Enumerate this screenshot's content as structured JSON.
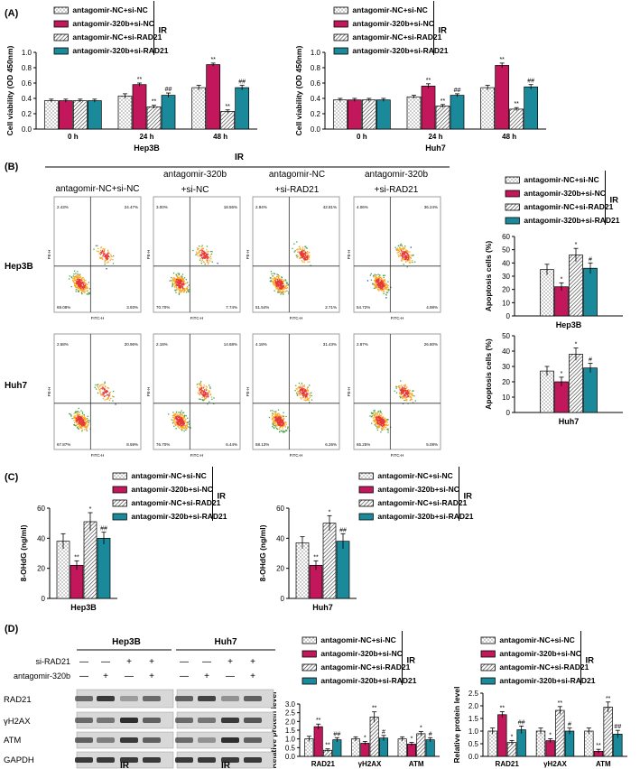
{
  "colors": {
    "nc": "#ffffff",
    "m320": "#c2185b",
    "rad21": "#ffffff",
    "combo": "#1a8a9a",
    "frame": "#000000"
  },
  "panel_labels": [
    "(A)",
    "(B)",
    "(C)",
    "(D)"
  ],
  "legend": {
    "items": [
      "antagomir-NC+si-NC",
      "antagomir-320b+si-NC",
      "antagomir-NC+si-RAD21",
      "antagomir-320b+si-RAD21"
    ],
    "tag": "IR"
  },
  "flow": {
    "ir_label": "IR",
    "col_headers": [
      {
        "l1": "antagomir-NC+si-NC",
        "l2": ""
      },
      {
        "l1": "antagomir-320b",
        "l2": "+si-NC"
      },
      {
        "l1": "antagomir-NC",
        "l2": "+si-RAD21"
      },
      {
        "l1": "antagomir-320b",
        "l2": "+si-RAD21"
      }
    ],
    "row_labels": [
      "Hep3B",
      "Huh7"
    ],
    "axis_x": "FITC-H",
    "axis_y": "PE-H",
    "quadrants": [
      [
        [
          "2.43%",
          "24.47%",
          "69.08%",
          "3.93%"
        ],
        [
          "3.00%",
          "18.56%",
          "70.70%",
          "7.74%"
        ],
        [
          "2.94%",
          "42.81%",
          "51.54%",
          "2.71%"
        ],
        [
          "4.06%",
          "36.24%",
          "54.72%",
          "4.98%"
        ]
      ],
      [
        [
          "2.58%",
          "20.96%",
          "67.87%",
          "8.59%"
        ],
        [
          "2.18%",
          "14.68%",
          "76.70%",
          "6.44%"
        ],
        [
          "4.18%",
          "31.43%",
          "58.13%",
          "6.26%"
        ],
        [
          "2.87%",
          "26.80%",
          "65.25%",
          "5.08%"
        ]
      ]
    ]
  },
  "chart_data": [
    {
      "id": "A1",
      "type": "bar",
      "title": "Hep3B",
      "xlabel": "Hep3B",
      "ylabel": "Cell viability (OD 450nm)",
      "ylim": [
        0,
        1.0
      ],
      "yticks": [
        "0.0",
        "0.2",
        "0.4",
        "0.6",
        "0.8",
        "1.0"
      ],
      "categories": [
        "0 h",
        "24 h",
        "48 h"
      ],
      "series": [
        {
          "name": "antagomir-NC+si-NC",
          "values": [
            0.37,
            0.43,
            0.54
          ],
          "err": [
            0.02,
            0.03,
            0.03
          ]
        },
        {
          "name": "antagomir-320b+si-NC",
          "values": [
            0.37,
            0.58,
            0.84
          ],
          "err": [
            0.02,
            0.02,
            0.02
          ]
        },
        {
          "name": "antagomir-NC+si-RAD21",
          "values": [
            0.37,
            0.29,
            0.23
          ],
          "err": [
            0.02,
            0.02,
            0.02
          ]
        },
        {
          "name": "antagomir-320b+si-RAD21",
          "values": [
            0.37,
            0.44,
            0.54
          ],
          "err": [
            0.02,
            0.03,
            0.03
          ]
        }
      ],
      "sig": [
        [
          "",
          "",
          "",
          ""
        ],
        [
          "",
          "**",
          "**",
          "##"
        ],
        [
          "",
          "**",
          "**",
          "##"
        ]
      ]
    },
    {
      "id": "A2",
      "type": "bar",
      "title": "Huh7",
      "xlabel": "Huh7",
      "ylabel": "Cell viability (OD 450nm)",
      "ylim": [
        0,
        1.0
      ],
      "yticks": [
        "0.0",
        "0.2",
        "0.4",
        "0.6",
        "0.8",
        "1.0"
      ],
      "categories": [
        "0 h",
        "24 h",
        "48 h"
      ],
      "series": [
        {
          "name": "antagomir-NC+si-NC",
          "values": [
            0.38,
            0.42,
            0.54
          ],
          "err": [
            0.02,
            0.02,
            0.03
          ]
        },
        {
          "name": "antagomir-320b+si-NC",
          "values": [
            0.38,
            0.56,
            0.83
          ],
          "err": [
            0.02,
            0.03,
            0.03
          ]
        },
        {
          "name": "antagomir-NC+si-RAD21",
          "values": [
            0.38,
            0.3,
            0.26
          ],
          "err": [
            0.02,
            0.02,
            0.02
          ]
        },
        {
          "name": "antagomir-320b+si-RAD21",
          "values": [
            0.38,
            0.44,
            0.55
          ],
          "err": [
            0.02,
            0.02,
            0.03
          ]
        }
      ],
      "sig": [
        [
          "",
          "",
          "",
          ""
        ],
        [
          "",
          "**",
          "**",
          "##"
        ],
        [
          "",
          "**",
          "**",
          "##"
        ]
      ]
    },
    {
      "id": "B1",
      "type": "bar",
      "title": "Hep3B",
      "xlabel": "Hep3B",
      "ylabel": "Apoptosis cells (%)",
      "ylim": [
        0,
        60
      ],
      "yticks": [
        "0",
        "10",
        "20",
        "30",
        "40",
        "50",
        "60"
      ],
      "categories": [
        ""
      ],
      "series": [
        {
          "name": "antagomir-NC+si-NC",
          "values": [
            35
          ],
          "err": [
            4
          ]
        },
        {
          "name": "antagomir-320b+si-NC",
          "values": [
            22
          ],
          "err": [
            3
          ]
        },
        {
          "name": "antagomir-NC+si-RAD21",
          "values": [
            46
          ],
          "err": [
            5
          ]
        },
        {
          "name": "antagomir-320b+si-RAD21",
          "values": [
            36
          ],
          "err": [
            4
          ]
        }
      ],
      "sig": [
        [
          "",
          "*",
          "*",
          "#"
        ]
      ]
    },
    {
      "id": "B2",
      "type": "bar",
      "title": "Huh7",
      "xlabel": "Huh7",
      "ylabel": "Apoptosis cells (%)",
      "ylim": [
        0,
        50
      ],
      "yticks": [
        "0",
        "10",
        "20",
        "30",
        "40",
        "50"
      ],
      "categories": [
        ""
      ],
      "series": [
        {
          "name": "antagomir-NC+si-NC",
          "values": [
            27
          ],
          "err": [
            3
          ]
        },
        {
          "name": "antagomir-320b+si-NC",
          "values": [
            20
          ],
          "err": [
            3
          ]
        },
        {
          "name": "antagomir-NC+si-RAD21",
          "values": [
            38
          ],
          "err": [
            4
          ]
        },
        {
          "name": "antagomir-320b+si-RAD21",
          "values": [
            29
          ],
          "err": [
            3
          ]
        }
      ],
      "sig": [
        [
          "",
          "*",
          "*",
          "#"
        ]
      ]
    },
    {
      "id": "C1",
      "type": "bar",
      "title": "Hep3B",
      "xlabel": "Hep3B",
      "ylabel": "8-OHdG (ng/ml)",
      "ylim": [
        0,
        60
      ],
      "yticks": [
        "0",
        "20",
        "40",
        "60"
      ],
      "categories": [
        ""
      ],
      "series": [
        {
          "name": "antagomir-NC+si-NC",
          "values": [
            38
          ],
          "err": [
            5
          ]
        },
        {
          "name": "antagomir-320b+si-NC",
          "values": [
            22
          ],
          "err": [
            3
          ]
        },
        {
          "name": "antagomir-NC+si-RAD21",
          "values": [
            51
          ],
          "err": [
            6
          ]
        },
        {
          "name": "antagomir-320b+si-RAD21",
          "values": [
            40
          ],
          "err": [
            4
          ]
        }
      ],
      "sig": [
        [
          "",
          "**",
          "*",
          "##"
        ]
      ]
    },
    {
      "id": "C2",
      "type": "bar",
      "title": "Huh7",
      "xlabel": "Huh7",
      "ylabel": "8-OHdG (ng/ml)",
      "ylim": [
        0,
        60
      ],
      "yticks": [
        "0",
        "20",
        "40",
        "60"
      ],
      "categories": [
        ""
      ],
      "series": [
        {
          "name": "antagomir-NC+si-NC",
          "values": [
            37
          ],
          "err": [
            4
          ]
        },
        {
          "name": "antagomir-320b+si-NC",
          "values": [
            22
          ],
          "err": [
            3
          ]
        },
        {
          "name": "antagomir-NC+si-RAD21",
          "values": [
            50
          ],
          "err": [
            5
          ]
        },
        {
          "name": "antagomir-320b+si-RAD21",
          "values": [
            38
          ],
          "err": [
            5
          ]
        }
      ],
      "sig": [
        [
          "",
          "**",
          "*",
          "##"
        ]
      ]
    },
    {
      "id": "D1",
      "type": "bar",
      "title": "Hep3B",
      "xlabel": "Hep3B",
      "ylabel": "Relative protein level",
      "ylim": [
        0,
        3.0
      ],
      "yticks": [
        "0.0",
        "0.5",
        "1.0",
        "1.5",
        "2.0",
        "2.5",
        "3.0"
      ],
      "categories": [
        "RAD21",
        "γH2AX",
        "ATM"
      ],
      "series": [
        {
          "name": "antagomir-NC+si-NC",
          "values": [
            1.0,
            1.0,
            1.0
          ],
          "err": [
            0.15,
            0.12,
            0.12
          ]
        },
        {
          "name": "antagomir-320b+si-NC",
          "values": [
            1.7,
            0.75,
            0.7
          ],
          "err": [
            0.15,
            0.1,
            0.1
          ]
        },
        {
          "name": "antagomir-NC+si-RAD21",
          "values": [
            0.35,
            2.25,
            1.3
          ],
          "err": [
            0.08,
            0.3,
            0.12
          ]
        },
        {
          "name": "antagomir-320b+si-RAD21",
          "values": [
            0.95,
            1.05,
            0.95
          ],
          "err": [
            0.12,
            0.15,
            0.12
          ]
        }
      ],
      "sig": [
        [
          "",
          "**",
          "**",
          "##"
        ],
        [
          "",
          "*",
          "**",
          "#"
        ],
        [
          "",
          "*",
          "*",
          "#"
        ]
      ]
    },
    {
      "id": "D2",
      "type": "bar",
      "title": "Huh7",
      "xlabel": "Huh7",
      "ylabel": "Relative protein level",
      "ylim": [
        0,
        2.5
      ],
      "yticks": [
        "0.0",
        "0.5",
        "1.0",
        "1.5",
        "2.0",
        "2.5"
      ],
      "categories": [
        "RAD21",
        "γH2AX",
        "ATM"
      ],
      "series": [
        {
          "name": "antagomir-NC+si-NC",
          "values": [
            1.0,
            1.0,
            1.0
          ],
          "err": [
            0.12,
            0.12,
            0.12
          ]
        },
        {
          "name": "antagomir-320b+si-NC",
          "values": [
            1.65,
            0.62,
            0.2
          ],
          "err": [
            0.12,
            0.08,
            0.08
          ]
        },
        {
          "name": "antagomir-NC+si-RAD21",
          "values": [
            0.55,
            1.82,
            1.95
          ],
          "err": [
            0.08,
            0.15,
            0.2
          ]
        },
        {
          "name": "antagomir-320b+si-RAD21",
          "values": [
            1.05,
            1.0,
            0.88
          ],
          "err": [
            0.15,
            0.12,
            0.15
          ]
        }
      ],
      "sig": [
        [
          "",
          "**",
          "*",
          "##"
        ],
        [
          "",
          "*",
          "**",
          "#"
        ],
        [
          "",
          "**",
          "**",
          "##"
        ]
      ]
    }
  ],
  "blot": {
    "cells": [
      "Hep3B",
      "Huh7"
    ],
    "conditions": [
      "si-RAD21",
      "antagomir-320b"
    ],
    "signs": [
      [
        "—",
        "—",
        "+",
        "+"
      ],
      [
        "—",
        "+",
        "—",
        "+"
      ]
    ],
    "proteins": [
      "RAD21",
      "γH2AX",
      "ATM",
      "GAPDH"
    ],
    "footer": "IR"
  }
}
